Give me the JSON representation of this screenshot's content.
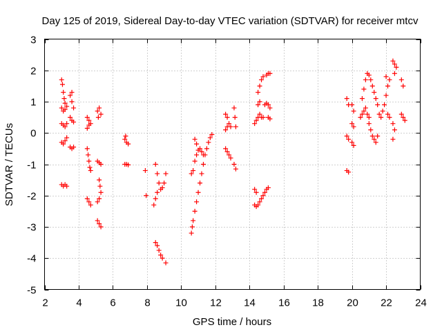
{
  "chart_data": {
    "type": "scatter",
    "title": "Day 125 of 2019, Sidereal Day-to-day VTEC variation (SDTVAR) for receiver mtcv",
    "xlabel": "GPS time / hours",
    "ylabel": "SDTVAR / TECUs",
    "xlim": [
      2,
      24
    ],
    "ylim": [
      -5,
      3
    ],
    "xticks": [
      2,
      4,
      6,
      8,
      10,
      12,
      14,
      16,
      18,
      20,
      22,
      24
    ],
    "yticks": [
      -5,
      -4,
      -3,
      -2,
      -1,
      0,
      1,
      2,
      3
    ],
    "grid": true,
    "marker": "+",
    "color": "#ff0000",
    "series": [
      {
        "name": "SDTVAR",
        "points": [
          [
            3.0,
            1.7
          ],
          [
            3.05,
            1.55
          ],
          [
            3.1,
            1.3
          ],
          [
            3.15,
            1.1
          ],
          [
            3.2,
            0.95
          ],
          [
            3.0,
            0.8
          ],
          [
            3.1,
            0.7
          ],
          [
            3.2,
            0.75
          ],
          [
            3.3,
            0.85
          ],
          [
            3.0,
            0.3
          ],
          [
            3.1,
            0.25
          ],
          [
            3.2,
            0.2
          ],
          [
            3.3,
            0.3
          ],
          [
            3.0,
            -0.3
          ],
          [
            3.1,
            -0.35
          ],
          [
            3.2,
            -0.25
          ],
          [
            3.3,
            -0.15
          ],
          [
            3.0,
            -1.65
          ],
          [
            3.1,
            -1.7
          ],
          [
            3.2,
            -1.65
          ],
          [
            3.3,
            -1.7
          ],
          [
            3.5,
            1.2
          ],
          [
            3.6,
            1.0
          ],
          [
            3.7,
            0.8
          ],
          [
            3.6,
            1.3
          ],
          [
            3.5,
            0.5
          ],
          [
            3.6,
            0.4
          ],
          [
            3.7,
            0.35
          ],
          [
            3.5,
            -0.45
          ],
          [
            3.6,
            -0.5
          ],
          [
            3.7,
            -0.45
          ],
          [
            4.5,
            0.5
          ],
          [
            4.6,
            0.4
          ],
          [
            4.7,
            0.3
          ],
          [
            4.5,
            0.15
          ],
          [
            4.6,
            0.25
          ],
          [
            4.5,
            -0.5
          ],
          [
            4.55,
            -0.7
          ],
          [
            4.6,
            -0.9
          ],
          [
            4.65,
            -1.1
          ],
          [
            4.7,
            -1.2
          ],
          [
            4.5,
            -2.1
          ],
          [
            4.6,
            -2.2
          ],
          [
            4.7,
            -2.3
          ],
          [
            5.1,
            0.7
          ],
          [
            5.2,
            0.8
          ],
          [
            5.3,
            0.6
          ],
          [
            5.15,
            0.5
          ],
          [
            5.1,
            -0.9
          ],
          [
            5.2,
            -0.95
          ],
          [
            5.3,
            -1.0
          ],
          [
            5.1,
            -2.2
          ],
          [
            5.2,
            -2.1
          ],
          [
            5.3,
            -1.9
          ],
          [
            5.25,
            -1.7
          ],
          [
            5.2,
            -1.5
          ],
          [
            5.1,
            -2.8
          ],
          [
            5.2,
            -2.9
          ],
          [
            5.3,
            -3.0
          ],
          [
            6.7,
            -0.2
          ],
          [
            6.8,
            -0.3
          ],
          [
            6.9,
            -0.35
          ],
          [
            6.75,
            -0.1
          ],
          [
            6.7,
            -1.0
          ],
          [
            6.8,
            -1.0
          ],
          [
            6.9,
            -1.02
          ],
          [
            7.9,
            -1.2
          ],
          [
            7.95,
            -2.0
          ],
          [
            8.4,
            -2.3
          ],
          [
            8.5,
            -2.1
          ],
          [
            8.6,
            -1.9
          ],
          [
            8.5,
            -1.0
          ],
          [
            8.6,
            -1.3
          ],
          [
            8.7,
            -1.6
          ],
          [
            8.8,
            -1.8
          ],
          [
            8.9,
            -1.75
          ],
          [
            9.0,
            -1.6
          ],
          [
            8.5,
            -3.5
          ],
          [
            8.6,
            -3.6
          ],
          [
            8.7,
            -3.75
          ],
          [
            8.8,
            -3.9
          ],
          [
            8.9,
            -4.0
          ],
          [
            9.1,
            -4.15
          ],
          [
            9.1,
            -1.3
          ],
          [
            10.6,
            -3.2
          ],
          [
            10.65,
            -3.0
          ],
          [
            10.7,
            -2.8
          ],
          [
            10.8,
            -2.5
          ],
          [
            10.9,
            -2.2
          ],
          [
            11.0,
            -1.9
          ],
          [
            11.1,
            -1.6
          ],
          [
            11.2,
            -1.3
          ],
          [
            11.3,
            -1.0
          ],
          [
            11.4,
            -0.7
          ],
          [
            11.5,
            -0.5
          ],
          [
            11.6,
            -0.3
          ],
          [
            11.7,
            -0.15
          ],
          [
            11.8,
            -0.05
          ],
          [
            10.6,
            -1.3
          ],
          [
            10.7,
            -1.2
          ],
          [
            10.8,
            -0.9
          ],
          [
            10.9,
            -0.7
          ],
          [
            11.0,
            -0.55
          ],
          [
            11.1,
            -0.5
          ],
          [
            11.2,
            -0.6
          ],
          [
            11.3,
            -0.7
          ],
          [
            10.8,
            -0.2
          ],
          [
            10.9,
            -0.35
          ],
          [
            12.6,
            0.6
          ],
          [
            12.7,
            0.5
          ],
          [
            12.8,
            0.3
          ],
          [
            12.9,
            0.2
          ],
          [
            12.6,
            0.1
          ],
          [
            12.7,
            0.2
          ],
          [
            12.6,
            -0.5
          ],
          [
            12.7,
            -0.6
          ],
          [
            12.8,
            -0.7
          ],
          [
            12.9,
            -0.8
          ],
          [
            13.1,
            0.8
          ],
          [
            13.15,
            0.5
          ],
          [
            13.2,
            0.2
          ],
          [
            13.1,
            -1.0
          ],
          [
            13.2,
            -1.15
          ],
          [
            14.3,
            0.3
          ],
          [
            14.4,
            0.4
          ],
          [
            14.5,
            0.5
          ],
          [
            14.6,
            0.6
          ],
          [
            14.7,
            0.5
          ],
          [
            14.8,
            0.5
          ],
          [
            14.5,
            0.9
          ],
          [
            14.6,
            1.0
          ],
          [
            14.5,
            1.3
          ],
          [
            14.6,
            1.5
          ],
          [
            14.7,
            1.7
          ],
          [
            14.8,
            1.8
          ],
          [
            15.0,
            1.85
          ],
          [
            15.1,
            1.9
          ],
          [
            15.2,
            1.9
          ],
          [
            14.9,
            0.9
          ],
          [
            15.0,
            0.95
          ],
          [
            15.1,
            0.9
          ],
          [
            15.2,
            0.8
          ],
          [
            15.1,
            0.5
          ],
          [
            15.2,
            0.45
          ],
          [
            14.3,
            -2.3
          ],
          [
            14.4,
            -2.35
          ],
          [
            14.5,
            -2.3
          ],
          [
            14.6,
            -2.2
          ],
          [
            14.7,
            -2.1
          ],
          [
            14.8,
            -2.0
          ],
          [
            14.9,
            -1.9
          ],
          [
            15.0,
            -1.8
          ],
          [
            15.1,
            -1.75
          ],
          [
            14.3,
            -1.8
          ],
          [
            14.4,
            -1.9
          ],
          [
            19.7,
            1.1
          ],
          [
            19.8,
            0.9
          ],
          [
            19.7,
            -0.1
          ],
          [
            19.8,
            -0.2
          ],
          [
            19.7,
            -1.2
          ],
          [
            19.8,
            -1.25
          ],
          [
            20.0,
            0.9
          ],
          [
            20.1,
            0.7
          ],
          [
            20.0,
            0.3
          ],
          [
            20.1,
            0.2
          ],
          [
            20.0,
            -0.3
          ],
          [
            20.1,
            -0.4
          ],
          [
            20.5,
            0.5
          ],
          [
            20.6,
            0.6
          ],
          [
            20.7,
            0.7
          ],
          [
            20.8,
            0.8
          ],
          [
            20.9,
            0.6
          ],
          [
            21.0,
            0.5
          ],
          [
            20.6,
            1.1
          ],
          [
            20.7,
            1.4
          ],
          [
            20.8,
            1.7
          ],
          [
            20.9,
            1.9
          ],
          [
            21.0,
            1.85
          ],
          [
            21.1,
            1.7
          ],
          [
            21.2,
            1.5
          ],
          [
            21.3,
            1.3
          ],
          [
            21.4,
            1.1
          ],
          [
            21.5,
            0.9
          ],
          [
            21.0,
            0.3
          ],
          [
            21.1,
            0.1
          ],
          [
            21.2,
            -0.1
          ],
          [
            21.3,
            -0.2
          ],
          [
            21.4,
            -0.3
          ],
          [
            21.5,
            -0.1
          ],
          [
            21.6,
            0.6
          ],
          [
            21.7,
            0.5
          ],
          [
            21.8,
            0.7
          ],
          [
            21.9,
            0.9
          ],
          [
            22.0,
            1.2
          ],
          [
            22.1,
            1.5
          ],
          [
            22.2,
            1.7
          ],
          [
            22.0,
            1.8
          ],
          [
            22.1,
            0.6
          ],
          [
            22.2,
            0.5
          ],
          [
            22.4,
            2.3
          ],
          [
            22.5,
            2.2
          ],
          [
            22.6,
            2.1
          ],
          [
            22.5,
            1.9
          ],
          [
            22.4,
            0.3
          ],
          [
            22.5,
            0.1
          ],
          [
            22.4,
            -0.2
          ],
          [
            22.9,
            1.7
          ],
          [
            23.0,
            1.5
          ],
          [
            22.9,
            0.6
          ],
          [
            23.0,
            0.5
          ],
          [
            23.1,
            0.4
          ]
        ]
      }
    ]
  }
}
